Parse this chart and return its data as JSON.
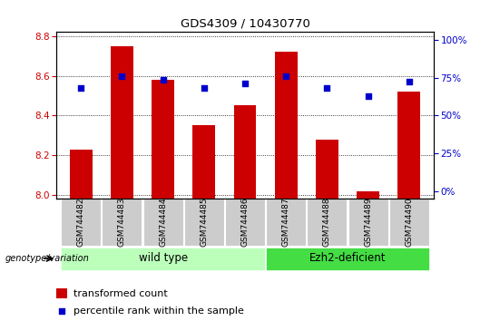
{
  "title": "GDS4309 / 10430770",
  "samples": [
    "GSM744482",
    "GSM744483",
    "GSM744484",
    "GSM744485",
    "GSM744486",
    "GSM744487",
    "GSM744488",
    "GSM744489",
    "GSM744490"
  ],
  "bar_values": [
    8.23,
    8.75,
    8.58,
    8.35,
    8.45,
    8.72,
    8.28,
    8.02,
    8.52
  ],
  "percentile_values": [
    8.54,
    8.6,
    8.58,
    8.54,
    8.56,
    8.6,
    8.54,
    8.5,
    8.57
  ],
  "ylim_left": [
    7.98,
    8.82
  ],
  "ylim_right": [
    -5,
    105
  ],
  "yticks_left": [
    8.0,
    8.2,
    8.4,
    8.6,
    8.8
  ],
  "yticks_right": [
    0,
    25,
    50,
    75,
    100
  ],
  "bar_color": "#cc0000",
  "dot_color": "#0000cc",
  "bar_width": 0.55,
  "groups": [
    {
      "label": "wild type",
      "start": 0,
      "end": 4,
      "color": "#aaffaa"
    },
    {
      "label": "Ezh2-deficient",
      "start": 5,
      "end": 8,
      "color": "#44dd44"
    }
  ],
  "genotype_label": "genotype/variation",
  "legend_bar_label": "transformed count",
  "legend_dot_label": "percentile rank within the sample",
  "title_color": "#000000",
  "left_tick_color": "#cc0000",
  "right_tick_color": "#0000cc",
  "bg_color": "#ffffff",
  "grid_color": "#000000",
  "xtick_box_color": "#cccccc"
}
